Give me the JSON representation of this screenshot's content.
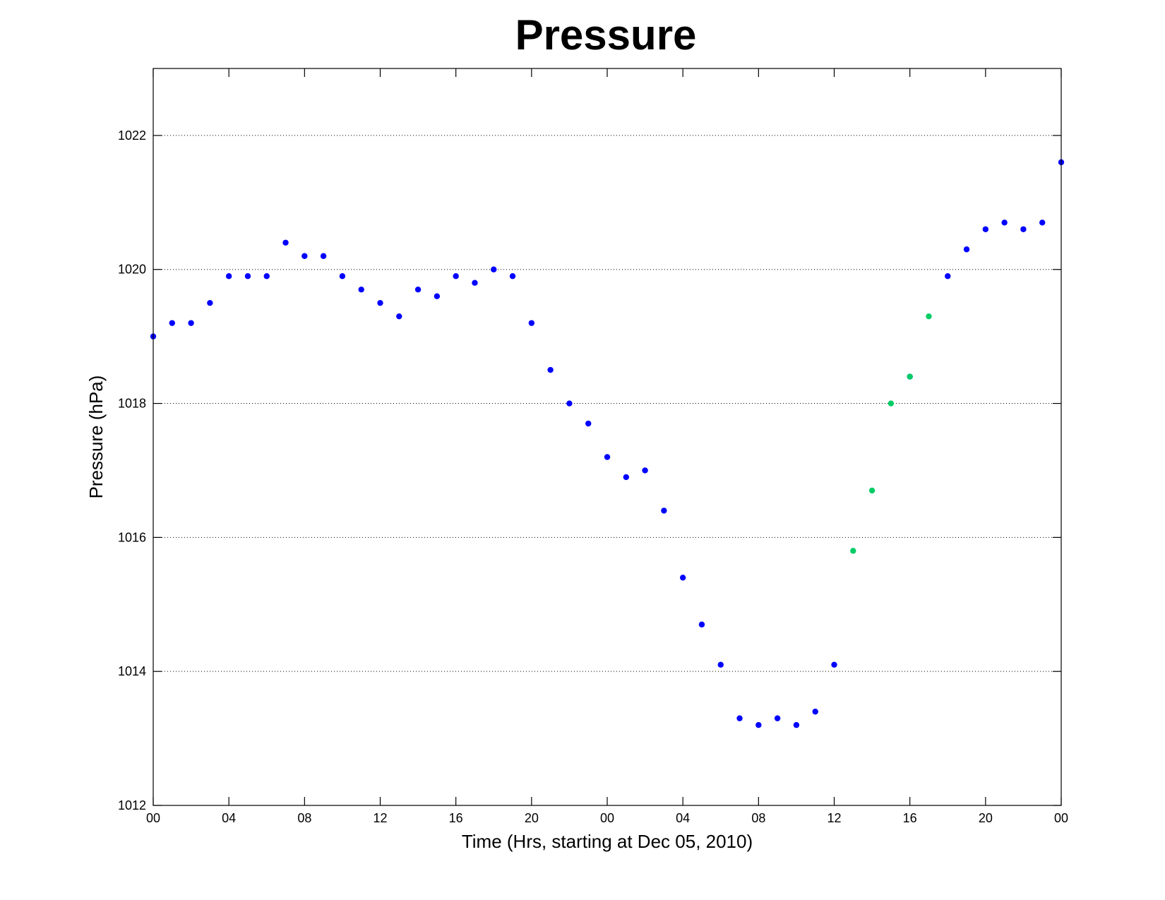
{
  "chart_data": {
    "type": "scatter",
    "title": "Pressure",
    "xlabel": "Time (Hrs, starting at Dec 05, 2010)",
    "ylabel": "Pressure (hPa)",
    "xlim": [
      0,
      48
    ],
    "ylim": [
      1012,
      1023
    ],
    "grid": "y-major dotted",
    "xticks": [
      {
        "x": 0,
        "label": "00"
      },
      {
        "x": 4,
        "label": "04"
      },
      {
        "x": 8,
        "label": "08"
      },
      {
        "x": 12,
        "label": "12"
      },
      {
        "x": 16,
        "label": "16"
      },
      {
        "x": 20,
        "label": "20"
      },
      {
        "x": 24,
        "label": "00"
      },
      {
        "x": 28,
        "label": "04"
      },
      {
        "x": 32,
        "label": "08"
      },
      {
        "x": 36,
        "label": "12"
      },
      {
        "x": 40,
        "label": "16"
      },
      {
        "x": 44,
        "label": "20"
      },
      {
        "x": 48,
        "label": "00"
      }
    ],
    "yticks": [
      1012,
      1014,
      1016,
      1018,
      1020,
      1022
    ],
    "series": [
      {
        "color": "#0000ff",
        "points": [
          [
            0,
            1019.0
          ],
          [
            1,
            1019.2
          ],
          [
            2,
            1019.2
          ],
          [
            3,
            1019.5
          ],
          [
            4,
            1019.9
          ],
          [
            5,
            1019.9
          ],
          [
            6,
            1019.9
          ],
          [
            7,
            1020.4
          ],
          [
            8,
            1020.2
          ],
          [
            9,
            1020.2
          ],
          [
            10,
            1019.9
          ],
          [
            11,
            1019.7
          ],
          [
            12,
            1019.5
          ],
          [
            13,
            1019.3
          ],
          [
            14,
            1019.7
          ],
          [
            15,
            1019.6
          ],
          [
            16,
            1019.9
          ],
          [
            17,
            1019.8
          ],
          [
            18,
            1020.0
          ],
          [
            19,
            1019.9
          ],
          [
            20,
            1019.2
          ],
          [
            21,
            1018.5
          ],
          [
            22,
            1018.0
          ],
          [
            23,
            1017.7
          ],
          [
            24,
            1017.2
          ],
          [
            25,
            1016.9
          ],
          [
            26,
            1017.0
          ],
          [
            27,
            1016.4
          ],
          [
            28,
            1015.4
          ],
          [
            29,
            1014.7
          ],
          [
            30,
            1014.1
          ],
          [
            31,
            1013.3
          ],
          [
            32,
            1013.2
          ],
          [
            33,
            1013.3
          ],
          [
            34,
            1013.2
          ],
          [
            35,
            1013.4
          ],
          [
            36,
            1014.1
          ],
          [
            40,
            1018.4
          ],
          [
            42,
            1019.9
          ],
          [
            43,
            1020.3
          ],
          [
            44,
            1020.6
          ],
          [
            45,
            1020.7
          ],
          [
            46,
            1020.6
          ],
          [
            47,
            1020.7
          ],
          [
            48,
            1021.6
          ]
        ]
      },
      {
        "color": "#00cc66",
        "points": [
          [
            37,
            1015.8
          ],
          [
            38,
            1016.7
          ],
          [
            39,
            1018.0
          ],
          [
            40,
            1018.4
          ],
          [
            41,
            1019.3
          ]
        ]
      }
    ]
  }
}
